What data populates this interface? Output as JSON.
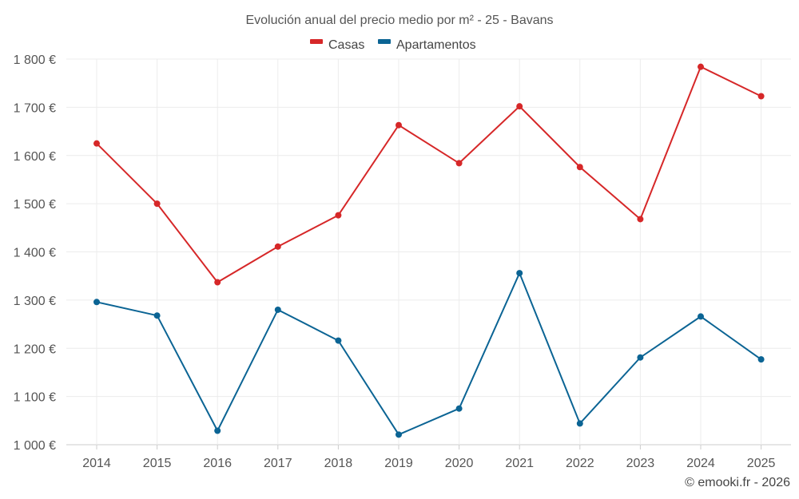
{
  "chart_data": {
    "type": "line",
    "title": "Evolución anual del precio medio por m² - 25 - Bavans",
    "xlabel": "",
    "ylabel": "",
    "categories": [
      "2014",
      "2015",
      "2016",
      "2017",
      "2018",
      "2019",
      "2020",
      "2021",
      "2022",
      "2023",
      "2024",
      "2025"
    ],
    "ylim": [
      1000,
      1800
    ],
    "yticks": [
      1000,
      1100,
      1200,
      1300,
      1400,
      1500,
      1600,
      1700,
      1800
    ],
    "ytick_labels": [
      "1 000 €",
      "1 100 €",
      "1 200 €",
      "1 300 €",
      "1 400 €",
      "1 500 €",
      "1 600 €",
      "1 700 €",
      "1 800 €"
    ],
    "grid": true,
    "legend_position": "top-center",
    "series": [
      {
        "name": "Casas",
        "color": "#d62728",
        "values": [
          1625,
          1500,
          1337,
          1411,
          1476,
          1663,
          1584,
          1702,
          1576,
          1468,
          1784,
          1723
        ]
      },
      {
        "name": "Apartamentos",
        "color": "#0b6494",
        "values": [
          1296,
          1268,
          1029,
          1280,
          1216,
          1021,
          1075,
          1356,
          1044,
          1181,
          1266,
          1177
        ]
      }
    ],
    "credit": "© emooki.fr - 2026"
  }
}
